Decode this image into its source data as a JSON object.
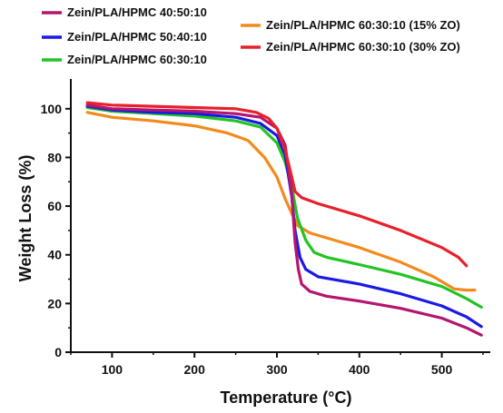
{
  "chart_data": {
    "type": "line",
    "xlabel": "Temperature (°C)",
    "ylabel": "Weight Loss (%)",
    "xlim": [
      50,
      550
    ],
    "ylim": [
      0,
      110
    ],
    "x_ticks": [
      100,
      200,
      300,
      400,
      500
    ],
    "y_ticks": [
      0,
      20,
      40,
      60,
      80,
      100
    ],
    "legend_position": "top",
    "series": [
      {
        "name": "Zein/PLA/HPMC 40:50:10",
        "color": "#b5156e",
        "points": [
          [
            70,
            101.5
          ],
          [
            100,
            100
          ],
          [
            150,
            99.5
          ],
          [
            200,
            99
          ],
          [
            250,
            98
          ],
          [
            280,
            96.5
          ],
          [
            300,
            92
          ],
          [
            310,
            85
          ],
          [
            318,
            65
          ],
          [
            322,
            45
          ],
          [
            326,
            34
          ],
          [
            330,
            28
          ],
          [
            340,
            25
          ],
          [
            360,
            23
          ],
          [
            400,
            21
          ],
          [
            450,
            18
          ],
          [
            500,
            14
          ],
          [
            530,
            10
          ],
          [
            548,
            7
          ]
        ]
      },
      {
        "name": "Zein/PLA/HPMC 50:40:10",
        "color": "#1a1ae6",
        "points": [
          [
            70,
            101
          ],
          [
            100,
            99.5
          ],
          [
            150,
            98.5
          ],
          [
            200,
            98
          ],
          [
            250,
            96.5
          ],
          [
            280,
            94
          ],
          [
            300,
            89
          ],
          [
            310,
            81
          ],
          [
            318,
            64
          ],
          [
            322,
            50
          ],
          [
            328,
            39
          ],
          [
            335,
            34
          ],
          [
            350,
            31
          ],
          [
            400,
            28
          ],
          [
            450,
            24
          ],
          [
            500,
            19
          ],
          [
            530,
            14.5
          ],
          [
            548,
            10.5
          ]
        ]
      },
      {
        "name": "Zein/PLA/HPMC 60:30:10",
        "color": "#22c422",
        "points": [
          [
            70,
            100.5
          ],
          [
            100,
            99
          ],
          [
            150,
            98
          ],
          [
            200,
            97
          ],
          [
            250,
            95
          ],
          [
            280,
            92.5
          ],
          [
            300,
            86
          ],
          [
            310,
            78
          ],
          [
            318,
            68
          ],
          [
            325,
            55
          ],
          [
            335,
            46
          ],
          [
            345,
            41
          ],
          [
            360,
            39
          ],
          [
            400,
            36
          ],
          [
            450,
            32
          ],
          [
            500,
            27
          ],
          [
            530,
            22
          ],
          [
            548,
            18.5
          ]
        ]
      },
      {
        "name": "Zein/PLA/HPMC 60:30:10 (15% ZO)",
        "color": "#f28a1c",
        "points": [
          [
            70,
            98.5
          ],
          [
            100,
            96.5
          ],
          [
            150,
            95
          ],
          [
            200,
            93
          ],
          [
            240,
            90
          ],
          [
            265,
            87
          ],
          [
            285,
            80
          ],
          [
            300,
            72
          ],
          [
            310,
            63
          ],
          [
            318,
            57
          ],
          [
            325,
            52
          ],
          [
            340,
            49
          ],
          [
            360,
            47
          ],
          [
            400,
            43
          ],
          [
            450,
            37
          ],
          [
            490,
            31
          ],
          [
            515,
            26
          ],
          [
            530,
            25.5
          ],
          [
            540,
            25.5
          ]
        ]
      },
      {
        "name": "Zein/PLA/HPMC 60:30:10 (30% ZO)",
        "color": "#e8202a",
        "points": [
          [
            70,
            102.5
          ],
          [
            100,
            101.5
          ],
          [
            150,
            101
          ],
          [
            200,
            100.5
          ],
          [
            250,
            100
          ],
          [
            275,
            98.5
          ],
          [
            290,
            96
          ],
          [
            300,
            92
          ],
          [
            310,
            83
          ],
          [
            318,
            72
          ],
          [
            322,
            66
          ],
          [
            330,
            63.5
          ],
          [
            350,
            61
          ],
          [
            400,
            56
          ],
          [
            450,
            50
          ],
          [
            500,
            43
          ],
          [
            520,
            39
          ],
          [
            530,
            35.5
          ]
        ]
      }
    ]
  }
}
